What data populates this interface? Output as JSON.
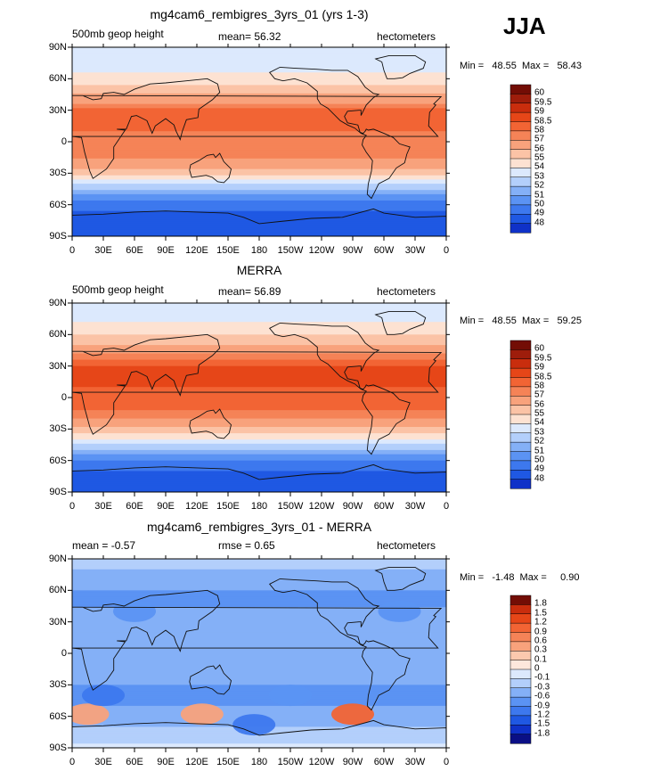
{
  "season": "JJA",
  "x_ticks": [
    "0",
    "30E",
    "60E",
    "90E",
    "120E",
    "150E",
    "180",
    "150W",
    "120W",
    "90W",
    "60W",
    "30W",
    "0"
  ],
  "y_ticks": [
    "90N",
    "60N",
    "30N",
    "0",
    "30S",
    "60S",
    "90S"
  ],
  "colors": {
    "height_scale": [
      "#0a0f85",
      "#0f31c8",
      "#1f58e3",
      "#3d78ee",
      "#5b93f3",
      "#84b0f7",
      "#b3cffb",
      "#dce9fd",
      "#fde2d2",
      "#fbc3a6",
      "#f8a27c",
      "#f58357",
      "#f26434",
      "#e64618",
      "#c92d0d",
      "#9e1d0b",
      "#730d05"
    ],
    "diff_scale": [
      "#0a0f85",
      "#0f31c8",
      "#1f58e3",
      "#3d78ee",
      "#5b93f3",
      "#84b0f7",
      "#b3cffb",
      "#dce9fd",
      "#fde7dc",
      "#fbc9ae",
      "#f8a27c",
      "#f58357",
      "#f26434",
      "#e64618",
      "#c92d0d",
      "#730d05"
    ]
  },
  "panels": [
    {
      "title": "mg4cam6_rembigres_3yrs_01 (yrs 1-3)",
      "left_label": "500mb geop height",
      "center_label": "mean=   56.32",
      "right_label": "hectometers",
      "min_max": "Min =   48.55  Max =   58.43"
    },
    {
      "title": "MERRA",
      "left_label": "500mb geop height",
      "center_label": "mean=   56.89",
      "right_label": "hectometers",
      "min_max": "Min =   48.55  Max =   59.25"
    },
    {
      "title": "mg4cam6_rembigres_3yrs_01 - MERRA",
      "left_label": "mean =    -0.57",
      "center_label": "rmse =     0.65",
      "right_label": "hectometers",
      "min_max": "Min =   -1.48  Max =     0.90"
    }
  ],
  "chart_data": [
    {
      "type": "heatmap",
      "title": "mg4cam6_rembigres_3yrs_01 (yrs 1-3)",
      "variable": "500mb geop height",
      "units": "hectometers",
      "mean": 56.32,
      "min": 48.55,
      "max": 58.43,
      "xlim": [
        0,
        360
      ],
      "ylim": [
        -90,
        90
      ],
      "colorbar_levels": [
        "60",
        "59.5",
        "59",
        "58.5",
        "58",
        "57",
        "56",
        "55",
        "54",
        "53",
        "52",
        "51",
        "50",
        "49",
        "48"
      ],
      "zonal_profile": {
        "lat": [
          -90,
          -80,
          -70,
          -60,
          -50,
          -40,
          -30,
          -20,
          -10,
          0,
          10,
          20,
          30,
          40,
          50,
          60,
          70,
          80,
          90
        ],
        "value": [
          49.0,
          49.2,
          49.6,
          50.5,
          52.0,
          54.0,
          56.3,
          57.8,
          58.2,
          58.3,
          58.5,
          58.7,
          58.6,
          57.7,
          56.4,
          55.3,
          54.7,
          54.4,
          54.3
        ]
      }
    },
    {
      "type": "heatmap",
      "title": "MERRA",
      "variable": "500mb geop height",
      "units": "hectometers",
      "mean": 56.89,
      "min": 48.55,
      "max": 59.25,
      "xlim": [
        0,
        360
      ],
      "ylim": [
        -90,
        90
      ],
      "colorbar_levels": [
        "60",
        "59.5",
        "59",
        "58.5",
        "58",
        "57",
        "56",
        "55",
        "54",
        "53",
        "52",
        "51",
        "50",
        "49",
        "48"
      ],
      "zonal_profile": {
        "lat": [
          -90,
          -80,
          -70,
          -60,
          -50,
          -40,
          -30,
          -20,
          -10,
          0,
          10,
          20,
          30,
          40,
          50,
          60,
          70,
          80,
          90
        ],
        "value": [
          49.0,
          49.5,
          50.0,
          51.0,
          52.8,
          54.8,
          56.8,
          58.1,
          58.6,
          58.8,
          59.0,
          59.2,
          59.0,
          58.2,
          57.0,
          55.9,
          55.1,
          54.7,
          54.6
        ]
      }
    },
    {
      "type": "heatmap",
      "title": "mg4cam6_rembigres_3yrs_01 - MERRA",
      "variable": "difference",
      "units": "hectometers",
      "mean": -0.57,
      "rmse": 0.65,
      "min": -1.48,
      "max": 0.9,
      "xlim": [
        0,
        360
      ],
      "ylim": [
        -90,
        90
      ],
      "colorbar_levels": [
        "1.8",
        "1.5",
        "1.2",
        "0.9",
        "0.6",
        "0.3",
        "0.1",
        "0",
        "-0.1",
        "-0.3",
        "-0.6",
        "-0.9",
        "-1.2",
        "-1.5",
        "-1.8"
      ],
      "zonal_profile": {
        "lat": [
          -90,
          -80,
          -70,
          -60,
          -50,
          -40,
          -30,
          -20,
          -10,
          0,
          10,
          20,
          30,
          40,
          50,
          60,
          70,
          80,
          90
        ],
        "value": [
          -0.05,
          -0.2,
          -0.3,
          -0.4,
          -0.6,
          -0.75,
          -0.6,
          -0.45,
          -0.45,
          -0.5,
          -0.55,
          -0.55,
          -0.5,
          -0.55,
          -0.65,
          -0.6,
          -0.45,
          -0.3,
          -0.25
        ]
      },
      "anomalies": [
        {
          "lon": 15,
          "lat": -58,
          "value": 0.4
        },
        {
          "lon": 125,
          "lat": -58,
          "value": 0.5
        },
        {
          "lon": 270,
          "lat": -58,
          "value": 0.9
        },
        {
          "lon": 30,
          "lat": -40,
          "value": -1.0
        },
        {
          "lon": 210,
          "lat": -40,
          "value": -0.9
        },
        {
          "lon": 175,
          "lat": -68,
          "value": -1.2
        },
        {
          "lon": 315,
          "lat": 40,
          "value": -0.9
        },
        {
          "lon": 60,
          "lat": 40,
          "value": -0.8
        }
      ]
    }
  ]
}
